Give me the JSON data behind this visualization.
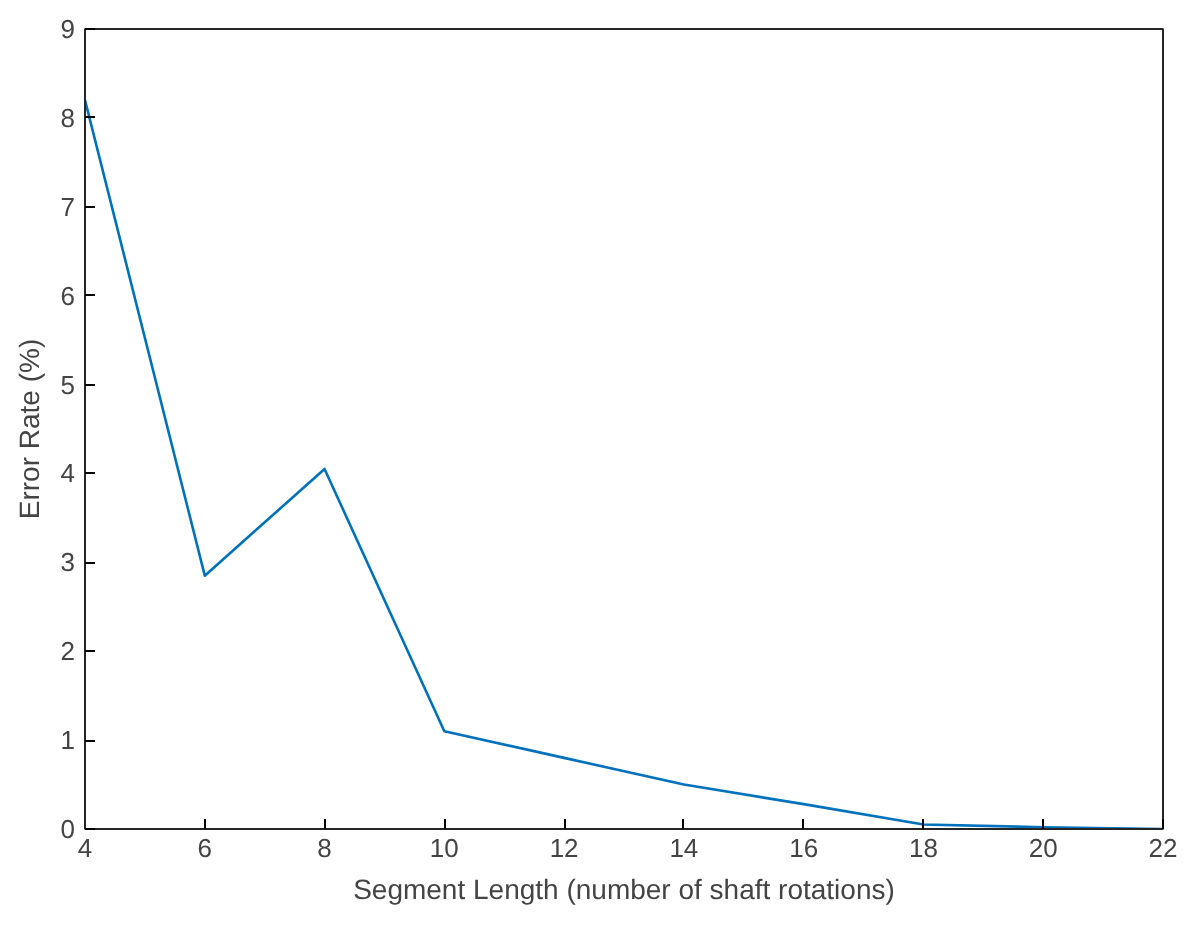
{
  "chart_data": {
    "type": "line",
    "xlabel": "Segment Length (number of shaft rotations)",
    "ylabel": "Error Rate (%)",
    "x": [
      4,
      6,
      8,
      10,
      12,
      14,
      16,
      18,
      20,
      22
    ],
    "series": [
      {
        "color": "#0072bd",
        "values": [
          8.2,
          2.85,
          4.05,
          1.1,
          0.8,
          0.5,
          0.28,
          0.05,
          0.02,
          0.0
        ]
      }
    ],
    "xlim": [
      4,
      22
    ],
    "xticks": [
      4,
      6,
      8,
      10,
      12,
      14,
      16,
      18,
      20,
      22
    ],
    "ylim": [
      0,
      9
    ],
    "yticks": [
      0,
      1,
      2,
      3,
      4,
      5,
      6,
      7,
      8,
      9
    ],
    "grid": false,
    "marker": "none",
    "line_style": "solid"
  }
}
